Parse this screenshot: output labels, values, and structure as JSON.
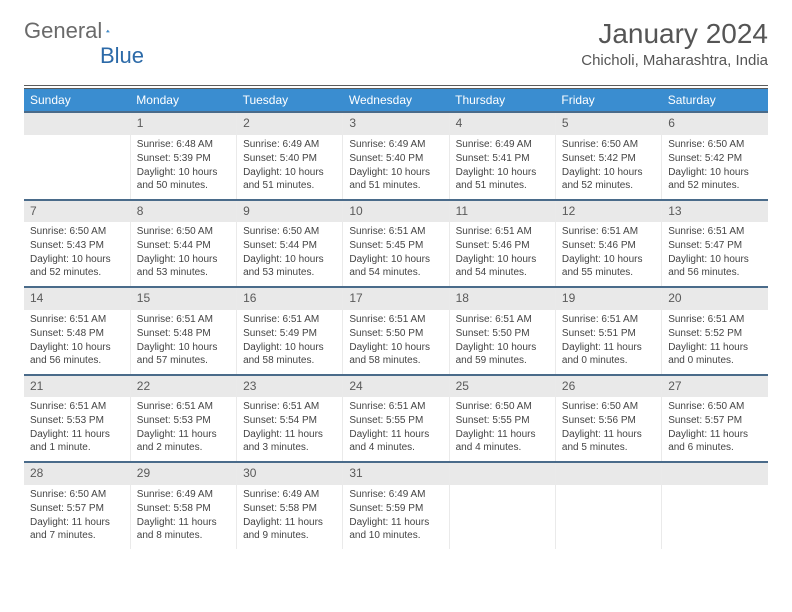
{
  "logo": {
    "text1": "General",
    "text2": "Blue"
  },
  "title": "January 2024",
  "location": "Chicholi, Maharashtra, India",
  "styling": {
    "page_bg": "#ffffff",
    "header_bg": "#3a8dd0",
    "header_text": "#ffffff",
    "daynum_bg": "#e9e9e9",
    "daynum_text": "#5a5a5a",
    "row_border": "#4a6b8a",
    "body_text": "#444444",
    "logo_gray": "#6a6a6a",
    "logo_blue": "#2c6aa8",
    "title_fontsize": 28,
    "header_fontsize": 12,
    "cell_fontsize": 10
  },
  "weekdays": [
    "Sunday",
    "Monday",
    "Tuesday",
    "Wednesday",
    "Thursday",
    "Friday",
    "Saturday"
  ],
  "first_weekday_index": 1,
  "days": [
    {
      "n": 1,
      "sunrise": "6:48 AM",
      "sunset": "5:39 PM",
      "daylight": "10 hours and 50 minutes."
    },
    {
      "n": 2,
      "sunrise": "6:49 AM",
      "sunset": "5:40 PM",
      "daylight": "10 hours and 51 minutes."
    },
    {
      "n": 3,
      "sunrise": "6:49 AM",
      "sunset": "5:40 PM",
      "daylight": "10 hours and 51 minutes."
    },
    {
      "n": 4,
      "sunrise": "6:49 AM",
      "sunset": "5:41 PM",
      "daylight": "10 hours and 51 minutes."
    },
    {
      "n": 5,
      "sunrise": "6:50 AM",
      "sunset": "5:42 PM",
      "daylight": "10 hours and 52 minutes."
    },
    {
      "n": 6,
      "sunrise": "6:50 AM",
      "sunset": "5:42 PM",
      "daylight": "10 hours and 52 minutes."
    },
    {
      "n": 7,
      "sunrise": "6:50 AM",
      "sunset": "5:43 PM",
      "daylight": "10 hours and 52 minutes."
    },
    {
      "n": 8,
      "sunrise": "6:50 AM",
      "sunset": "5:44 PM",
      "daylight": "10 hours and 53 minutes."
    },
    {
      "n": 9,
      "sunrise": "6:50 AM",
      "sunset": "5:44 PM",
      "daylight": "10 hours and 53 minutes."
    },
    {
      "n": 10,
      "sunrise": "6:51 AM",
      "sunset": "5:45 PM",
      "daylight": "10 hours and 54 minutes."
    },
    {
      "n": 11,
      "sunrise": "6:51 AM",
      "sunset": "5:46 PM",
      "daylight": "10 hours and 54 minutes."
    },
    {
      "n": 12,
      "sunrise": "6:51 AM",
      "sunset": "5:46 PM",
      "daylight": "10 hours and 55 minutes."
    },
    {
      "n": 13,
      "sunrise": "6:51 AM",
      "sunset": "5:47 PM",
      "daylight": "10 hours and 56 minutes."
    },
    {
      "n": 14,
      "sunrise": "6:51 AM",
      "sunset": "5:48 PM",
      "daylight": "10 hours and 56 minutes."
    },
    {
      "n": 15,
      "sunrise": "6:51 AM",
      "sunset": "5:48 PM",
      "daylight": "10 hours and 57 minutes."
    },
    {
      "n": 16,
      "sunrise": "6:51 AM",
      "sunset": "5:49 PM",
      "daylight": "10 hours and 58 minutes."
    },
    {
      "n": 17,
      "sunrise": "6:51 AM",
      "sunset": "5:50 PM",
      "daylight": "10 hours and 58 minutes."
    },
    {
      "n": 18,
      "sunrise": "6:51 AM",
      "sunset": "5:50 PM",
      "daylight": "10 hours and 59 minutes."
    },
    {
      "n": 19,
      "sunrise": "6:51 AM",
      "sunset": "5:51 PM",
      "daylight": "11 hours and 0 minutes."
    },
    {
      "n": 20,
      "sunrise": "6:51 AM",
      "sunset": "5:52 PM",
      "daylight": "11 hours and 0 minutes."
    },
    {
      "n": 21,
      "sunrise": "6:51 AM",
      "sunset": "5:53 PM",
      "daylight": "11 hours and 1 minute."
    },
    {
      "n": 22,
      "sunrise": "6:51 AM",
      "sunset": "5:53 PM",
      "daylight": "11 hours and 2 minutes."
    },
    {
      "n": 23,
      "sunrise": "6:51 AM",
      "sunset": "5:54 PM",
      "daylight": "11 hours and 3 minutes."
    },
    {
      "n": 24,
      "sunrise": "6:51 AM",
      "sunset": "5:55 PM",
      "daylight": "11 hours and 4 minutes."
    },
    {
      "n": 25,
      "sunrise": "6:50 AM",
      "sunset": "5:55 PM",
      "daylight": "11 hours and 4 minutes."
    },
    {
      "n": 26,
      "sunrise": "6:50 AM",
      "sunset": "5:56 PM",
      "daylight": "11 hours and 5 minutes."
    },
    {
      "n": 27,
      "sunrise": "6:50 AM",
      "sunset": "5:57 PM",
      "daylight": "11 hours and 6 minutes."
    },
    {
      "n": 28,
      "sunrise": "6:50 AM",
      "sunset": "5:57 PM",
      "daylight": "11 hours and 7 minutes."
    },
    {
      "n": 29,
      "sunrise": "6:49 AM",
      "sunset": "5:58 PM",
      "daylight": "11 hours and 8 minutes."
    },
    {
      "n": 30,
      "sunrise": "6:49 AM",
      "sunset": "5:58 PM",
      "daylight": "11 hours and 9 minutes."
    },
    {
      "n": 31,
      "sunrise": "6:49 AM",
      "sunset": "5:59 PM",
      "daylight": "11 hours and 10 minutes."
    }
  ],
  "labels": {
    "sunrise": "Sunrise:",
    "sunset": "Sunset:",
    "daylight": "Daylight:"
  }
}
